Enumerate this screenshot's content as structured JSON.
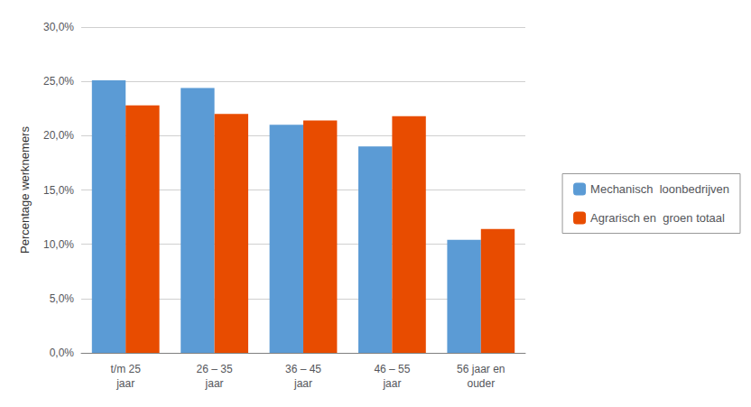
{
  "chart_data": {
    "type": "bar",
    "categories": [
      "t/m 25\njaar",
      "26 – 35\njaar",
      "36 – 45\njaar",
      "46 – 55\njaar",
      "56 jaar en\nouder"
    ],
    "series": [
      {
        "name": "Mechanisch  loonbedrijven",
        "color": "#5b9bd5",
        "values": [
          0.251,
          0.244,
          0.21,
          0.19,
          0.104
        ]
      },
      {
        "name": "Agrarisch en  groen totaal",
        "color": "#e84c00",
        "values": [
          0.228,
          0.22,
          0.214,
          0.218,
          0.114
        ]
      }
    ],
    "ylabel": "Percentage werknemers",
    "ylim": [
      0,
      0.3
    ],
    "yticks": [
      {
        "value": 0.0,
        "label": "0,0%"
      },
      {
        "value": 0.05,
        "label": "5,0%"
      },
      {
        "value": 0.1,
        "label": "10,0%"
      },
      {
        "value": 0.15,
        "label": "15,0%"
      },
      {
        "value": 0.2,
        "label": "20,0%"
      },
      {
        "value": 0.25,
        "label": "25,0%"
      },
      {
        "value": 0.3,
        "label": "30,0%"
      }
    ],
    "grid": true,
    "legend": "right"
  }
}
